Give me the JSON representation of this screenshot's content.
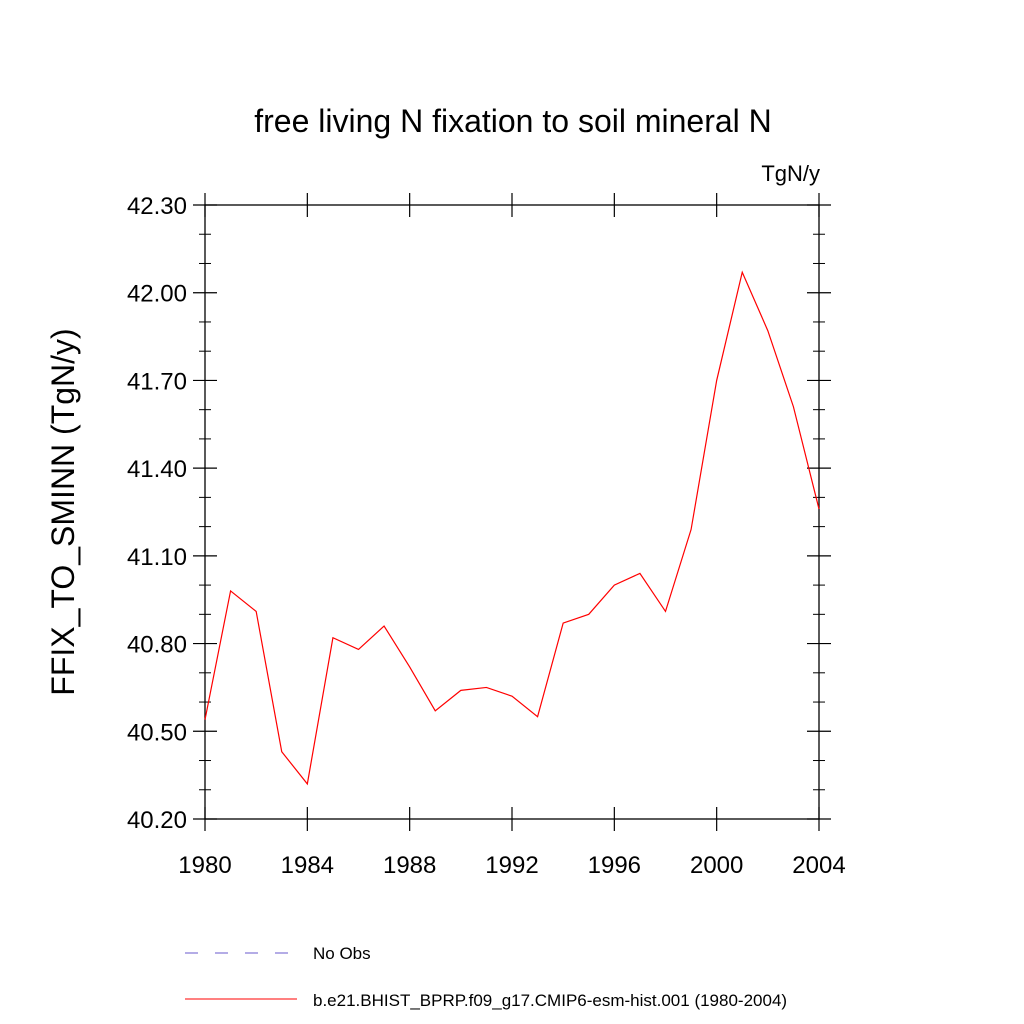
{
  "chart_data": {
    "type": "line",
    "title": "free living N fixation to soil mineral N",
    "units_label": "TgN/y",
    "xlabel": "",
    "ylabel": "FFIX_TO_SMINN  (TgN/y)",
    "xlim": [
      1980,
      2004
    ],
    "ylim": [
      40.2,
      42.3
    ],
    "xticks": [
      "1980",
      "1984",
      "1988",
      "1992",
      "1996",
      "2000",
      "2004"
    ],
    "yticks": [
      "40.20",
      "40.50",
      "40.80",
      "41.10",
      "41.40",
      "41.70",
      "42.00",
      "42.30"
    ],
    "grid": false,
    "legend_position": "bottom",
    "series": [
      {
        "name": "b.e21.BHIST_BPRP.f09_g17.CMIP6-esm-hist.001 (1980-2004)",
        "color": "#ff0000",
        "style": "solid",
        "x": [
          1980,
          1981,
          1982,
          1983,
          1984,
          1985,
          1986,
          1987,
          1988,
          1989,
          1990,
          1991,
          1992,
          1993,
          1994,
          1995,
          1996,
          1997,
          1998,
          1999,
          2000,
          2001,
          2002,
          2003,
          2004
        ],
        "values": [
          40.54,
          40.98,
          40.91,
          40.43,
          40.32,
          40.82,
          40.78,
          40.86,
          40.72,
          40.57,
          40.64,
          40.65,
          40.62,
          40.55,
          40.87,
          40.9,
          41.0,
          41.04,
          40.91,
          41.19,
          41.7,
          42.07,
          41.87,
          41.61,
          41.26
        ]
      },
      {
        "name": "No Obs",
        "color": "#6a5acd",
        "style": "dashed",
        "x": [],
        "values": []
      }
    ]
  }
}
